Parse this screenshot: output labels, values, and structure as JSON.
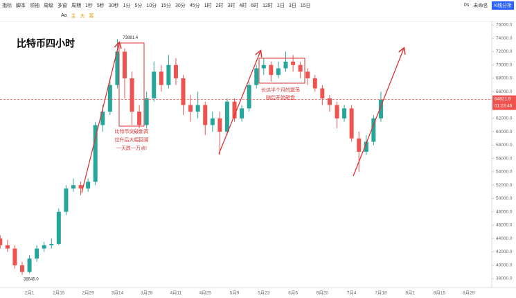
{
  "toolbar": {
    "row1": [
      "指标",
      "脚本",
      "领袖",
      "周级",
      "多窗",
      "周期",
      "1秒",
      "5秒",
      "30秒",
      "1分",
      "5分",
      "10分",
      "15分",
      "30分",
      "45分",
      "1时",
      "2时",
      "3时",
      "4时",
      "6时",
      "12时",
      "1日",
      "3日",
      "15日"
    ],
    "right": [
      "0s",
      "未命名",
      "K线分析"
    ],
    "row2": [
      "Aa",
      "主",
      "大",
      "筹"
    ]
  },
  "chart_data": {
    "type": "candlestick",
    "title": "比特币四小时",
    "categories": [
      null,
      null,
      null,
      null,
      "2月1",
      null,
      null,
      null,
      "2月15",
      null,
      null,
      null,
      "2月29",
      null,
      null,
      null,
      "3月14",
      null,
      null,
      null,
      "3月28",
      null,
      null,
      null,
      "4月11",
      null,
      null,
      null,
      "4月25",
      null,
      null,
      null,
      "5月9",
      null,
      null,
      null,
      "5月23",
      null,
      null,
      null,
      "6月6",
      null,
      null,
      null,
      "6月20",
      null,
      null,
      null,
      "7月4",
      null,
      null,
      null,
      "7月18",
      null,
      null,
      null,
      "8月1",
      null,
      null,
      null,
      "8月15",
      null,
      null,
      null,
      "8月29",
      null,
      null
    ],
    "open": [
      44000,
      43000,
      42500,
      40000,
      39000,
      41000,
      42500,
      43000,
      43200,
      48000,
      51500,
      52000,
      51500,
      52500,
      61000,
      63000,
      67000,
      72000,
      68000,
      63000,
      61000,
      65000,
      69000,
      67000,
      70000,
      68000,
      64000,
      63000,
      64000,
      61000,
      62000,
      60000,
      64500,
      62000,
      63500,
      67000,
      69500,
      70000,
      68500,
      69500,
      70500,
      70000,
      69000,
      68000,
      66500,
      65000,
      64000,
      62000,
      63500,
      59000,
      57000,
      58500,
      62000,
      null,
      null,
      null,
      null,
      null,
      null,
      null,
      null,
      null,
      null,
      null,
      null,
      null,
      null
    ],
    "high": [
      44500,
      43800,
      43000,
      40500,
      41500,
      43000,
      43500,
      44000,
      48500,
      52000,
      53000,
      52500,
      53000,
      61500,
      64000,
      68000,
      73881.4,
      72500,
      69000,
      64000,
      66000,
      70500,
      70000,
      71500,
      71000,
      68500,
      65500,
      66000,
      64500,
      63000,
      63000,
      65000,
      65000,
      64000,
      67500,
      70000,
      71000,
      70500,
      70500,
      72000,
      71500,
      70500,
      69500,
      68500,
      67000,
      65500,
      64500,
      64000,
      64000,
      60000,
      59500,
      62500,
      66000,
      null,
      null,
      null,
      null,
      null,
      null,
      null,
      null,
      null,
      null,
      null,
      null,
      null,
      null
    ],
    "low": [
      42500,
      42000,
      39500,
      38545,
      38800,
      40500,
      42000,
      42500,
      43000,
      47500,
      51000,
      50500,
      51000,
      52000,
      60000,
      62500,
      66500,
      65000,
      61000,
      60500,
      60500,
      64500,
      66000,
      66500,
      67000,
      62500,
      61500,
      62000,
      59500,
      60000,
      56500,
      59500,
      61500,
      61500,
      63000,
      66500,
      68500,
      67500,
      68000,
      69000,
      69000,
      68000,
      67000,
      66000,
      64000,
      63000,
      60500,
      61500,
      58500,
      54000,
      56500,
      58000,
      61500,
      null,
      null,
      null,
      null,
      null,
      null,
      null,
      null,
      null,
      null,
      null,
      null,
      null,
      null
    ],
    "close": [
      43000,
      42500,
      40000,
      39000,
      41000,
      42500,
      43000,
      43200,
      48000,
      51500,
      52000,
      51500,
      52500,
      61000,
      63000,
      67000,
      72000,
      68000,
      63000,
      61000,
      65000,
      69000,
      67000,
      70000,
      68000,
      64000,
      63000,
      64000,
      61000,
      62000,
      60000,
      64500,
      62000,
      63500,
      67000,
      69500,
      70000,
      68500,
      69500,
      70500,
      70000,
      69000,
      68000,
      66500,
      65000,
      64000,
      62000,
      63500,
      59000,
      57000,
      58500,
      62000,
      64821.9,
      null,
      null,
      null,
      null,
      null,
      null,
      null,
      null,
      null,
      null,
      null,
      null,
      null,
      null
    ],
    "up_color": "#26a69a",
    "down_color": "#ef5350",
    "ylim": [
      36650,
      76620
    ],
    "yticks": [
      {
        "value": 38000,
        "label": "38000.0"
      },
      {
        "value": 40000,
        "label": "40000.0"
      },
      {
        "value": 42000,
        "label": "42000.0"
      },
      {
        "value": 44000,
        "label": "44000.0"
      },
      {
        "value": 46000,
        "label": "46000.0"
      },
      {
        "value": 48000,
        "label": "48000.0"
      },
      {
        "value": 50000,
        "label": "50000.0"
      },
      {
        "value": 52000,
        "label": "52000.0"
      },
      {
        "value": 54000,
        "label": "54000.0"
      },
      {
        "value": 56000,
        "label": "56000.0"
      },
      {
        "value": 58000,
        "label": "58000.0"
      },
      {
        "value": 60000,
        "label": "60000.0"
      },
      {
        "value": 62000,
        "label": "62000.0"
      },
      {
        "value": 64000,
        "label": "64000.0"
      },
      {
        "value": 66000,
        "label": "66000.0"
      },
      {
        "value": 68000,
        "label": "68000.0"
      },
      {
        "value": 70000,
        "label": "70000.0"
      },
      {
        "value": 72000,
        "label": "72000.0"
      },
      {
        "value": 74000,
        "label": "74000.0"
      },
      {
        "value": 76000,
        "label": "76000.0"
      }
    ],
    "high_marker": {
      "value": 73881.4,
      "label": "73881.4"
    },
    "low_marker": {
      "value": 38545,
      "label": "38545.0"
    },
    "last_price": {
      "value": 64821.9,
      "label": "64821.9"
    },
    "countdown": "01:23:46",
    "annotations": [
      [
        "比特币突破新高",
        "拉升后大幅回调",
        "一天跌一万点!"
      ],
      [
        "长达半个月的震荡",
        "随后开始砸盘"
      ]
    ]
  }
}
